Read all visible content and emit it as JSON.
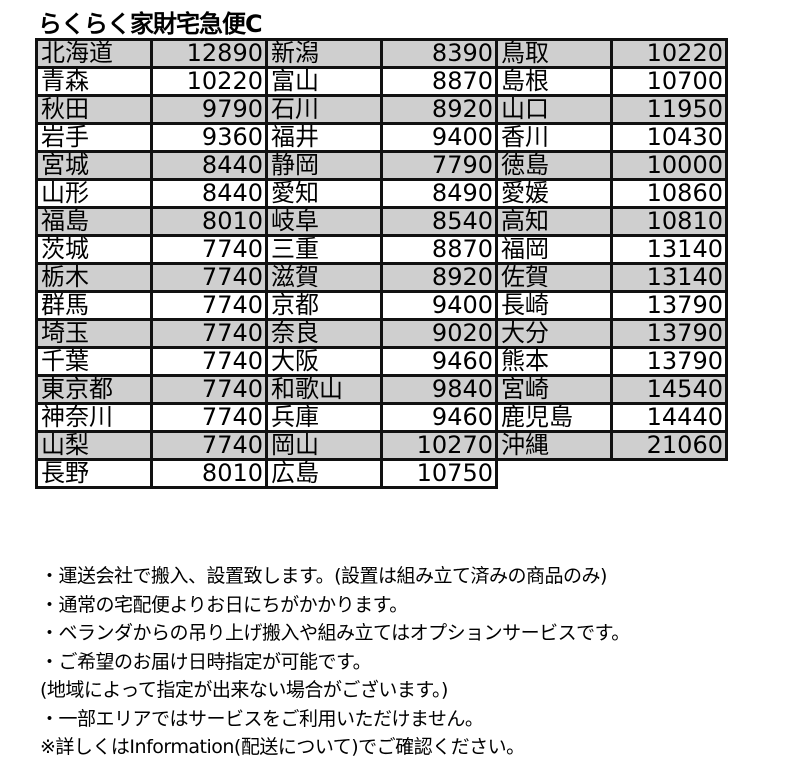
{
  "title": "らくらく家財宅急便C",
  "columns": [
    [
      [
        "北海道",
        "12890"
      ],
      [
        "青森",
        "10220"
      ],
      [
        "秋田",
        "9790"
      ],
      [
        "岩手",
        "9360"
      ],
      [
        "宮城",
        "8440"
      ],
      [
        "山形",
        "8440"
      ],
      [
        "福島",
        "8010"
      ],
      [
        "茨城",
        "7740"
      ],
      [
        "栃木",
        "7740"
      ],
      [
        "群馬",
        "7740"
      ],
      [
        "埼玉",
        "7740"
      ],
      [
        "千葉",
        "7740"
      ],
      [
        "東京都",
        "7740"
      ],
      [
        "神奈川",
        "7740"
      ],
      [
        "山梨",
        "7740"
      ],
      [
        "長野",
        "8010"
      ]
    ],
    [
      [
        "新潟",
        "8390"
      ],
      [
        "富山",
        "8870"
      ],
      [
        "石川",
        "8920"
      ],
      [
        "福井",
        "9400"
      ],
      [
        "静岡",
        "7790"
      ],
      [
        "愛知",
        "8490"
      ],
      [
        "岐阜",
        "8540"
      ],
      [
        "三重",
        "8870"
      ],
      [
        "滋賀",
        "8920"
      ],
      [
        "京都",
        "9400"
      ],
      [
        "奈良",
        "9020"
      ],
      [
        "大阪",
        "9460"
      ],
      [
        "和歌山",
        "9840"
      ],
      [
        "兵庫",
        "9460"
      ],
      [
        "岡山",
        "10270"
      ],
      [
        "広島",
        "10750"
      ]
    ],
    [
      [
        "鳥取",
        "10220"
      ],
      [
        "島根",
        "10700"
      ],
      [
        "山口",
        "11950"
      ],
      [
        "香川",
        "10430"
      ],
      [
        "徳島",
        "10000"
      ],
      [
        "愛媛",
        "10860"
      ],
      [
        "高知",
        "10810"
      ],
      [
        "福岡",
        "13140"
      ],
      [
        "佐賀",
        "13140"
      ],
      [
        "長崎",
        "13790"
      ],
      [
        "大分",
        "13790"
      ],
      [
        "熊本",
        "13790"
      ],
      [
        "宮崎",
        "14540"
      ],
      [
        "鹿児島",
        "14440"
      ],
      [
        "沖縄",
        "21060"
      ]
    ]
  ],
  "notes": [
    "・運送会社で搬入、設置致します。(設置は組み立て済みの商品のみ)",
    "・通常の宅配便よりお日にちがかかります。",
    "・ベランダからの吊り上げ搬入や組み立てはオプションサービスです。",
    "・ご希望のお届け日時指定が可能です。",
    "(地域によって指定が出来ない場合がございます。)",
    "・一部エリアではサービスをご利用いただけません。",
    "※詳しくはInformation(配送について)でご確認ください。"
  ],
  "colors": {
    "shaded_row": "#cfcfcf",
    "border": "#111111"
  }
}
